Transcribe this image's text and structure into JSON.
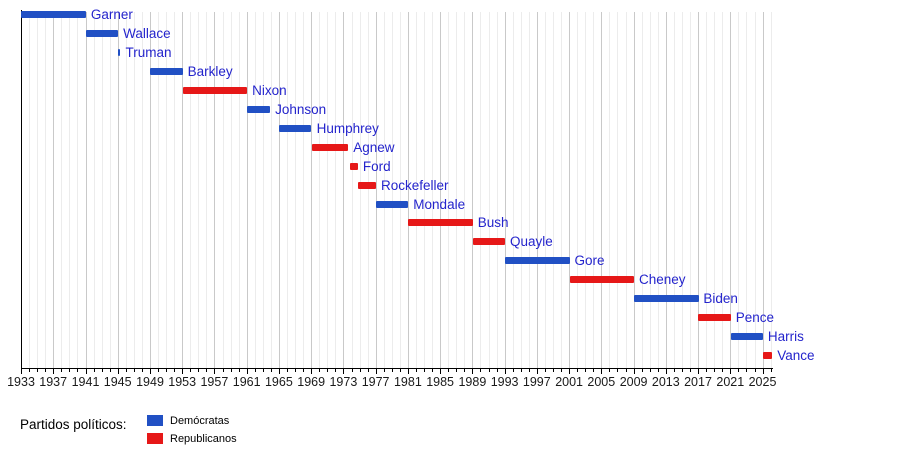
{
  "chart_data": {
    "type": "bar",
    "subtype": "timeline-gantt",
    "title": "",
    "x_axis": {
      "min_year": 1933,
      "max_year": 2026,
      "minor_tick_interval": 1,
      "major_tick_interval": 4,
      "tick_labels": [
        "1933",
        "1937",
        "1941",
        "1945",
        "1949",
        "1953",
        "1957",
        "1961",
        "1965",
        "1969",
        "1973",
        "1977",
        "1981",
        "1985",
        "1989",
        "1993",
        "1997",
        "2001",
        "2005",
        "2009",
        "2013",
        "2017",
        "2021",
        "2025"
      ]
    },
    "grid": {
      "minor_every_year": true,
      "major_every_4_years": true
    },
    "bars": [
      {
        "label": "Garner",
        "party": "democrat",
        "start": 1933.0,
        "end": 1941.05
      },
      {
        "label": "Wallace",
        "party": "democrat",
        "start": 1941.05,
        "end": 1945.05
      },
      {
        "label": "Truman",
        "party": "democrat",
        "start": 1945.05,
        "end": 1945.35
      },
      {
        "label": "Barkley",
        "party": "democrat",
        "start": 1949.05,
        "end": 1953.05
      },
      {
        "label": "Nixon",
        "party": "republican",
        "start": 1953.05,
        "end": 1961.05
      },
      {
        "label": "Johnson",
        "party": "democrat",
        "start": 1961.05,
        "end": 1963.9
      },
      {
        "label": "Humphrey",
        "party": "democrat",
        "start": 1965.05,
        "end": 1969.05
      },
      {
        "label": "Agnew",
        "party": "republican",
        "start": 1969.05,
        "end": 1973.6
      },
      {
        "label": "Ford",
        "party": "republican",
        "start": 1973.8,
        "end": 1974.8
      },
      {
        "label": "Rockefeller",
        "party": "republican",
        "start": 1974.8,
        "end": 1977.05
      },
      {
        "label": "Mondale",
        "party": "democrat",
        "start": 1977.05,
        "end": 1981.05
      },
      {
        "label": "Bush",
        "party": "republican",
        "start": 1981.05,
        "end": 1989.05
      },
      {
        "label": "Quayle",
        "party": "republican",
        "start": 1989.05,
        "end": 1993.05
      },
      {
        "label": "Gore",
        "party": "democrat",
        "start": 1993.05,
        "end": 2001.05
      },
      {
        "label": "Cheney",
        "party": "republican",
        "start": 2001.05,
        "end": 2009.05
      },
      {
        "label": "Biden",
        "party": "democrat",
        "start": 2009.05,
        "end": 2017.05
      },
      {
        "label": "Pence",
        "party": "republican",
        "start": 2017.05,
        "end": 2021.05
      },
      {
        "label": "Harris",
        "party": "democrat",
        "start": 2021.05,
        "end": 2025.05
      },
      {
        "label": "Vance",
        "party": "republican",
        "start": 2025.05,
        "end": 2026.2
      }
    ],
    "colors": {
      "democrat": "#2150c4",
      "republican": "#e61818",
      "bar_label_text": "#2424cc",
      "axis": "#000000"
    }
  },
  "legend": {
    "title": "Partidos políticos:",
    "items": [
      {
        "label": "Demócratas",
        "party": "democrat",
        "color": "#2150c4"
      },
      {
        "label": "Republicanos",
        "party": "republican",
        "color": "#e61818"
      }
    ]
  }
}
